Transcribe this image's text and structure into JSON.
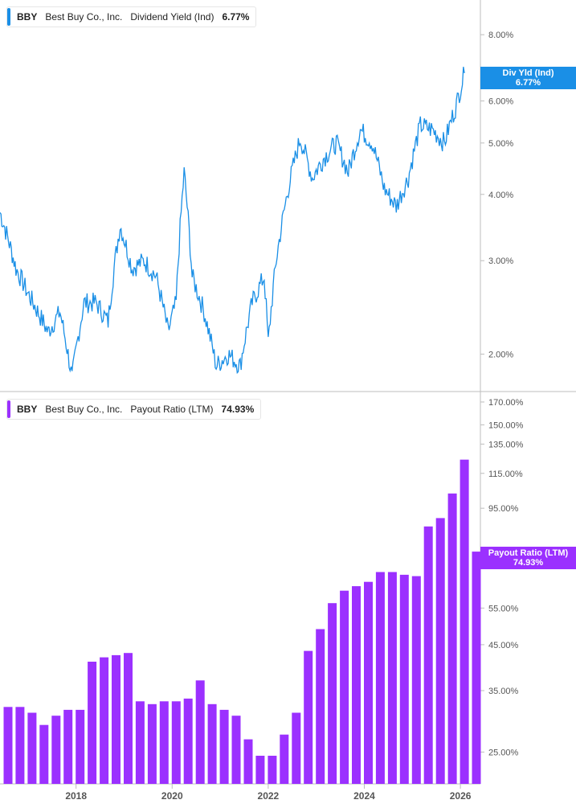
{
  "colors": {
    "yield": "#1a8fe6",
    "payout": "#9b30ff",
    "axis": "#bdbdbd",
    "grid": "#f2f2f2",
    "text": "#555555"
  },
  "legend_top": {
    "ticker": "BBY",
    "company": "Best Buy Co., Inc.",
    "metric": "Dividend Yield (Ind)",
    "value": "6.77%"
  },
  "legend_bottom": {
    "ticker": "BBY",
    "company": "Best Buy Co., Inc.",
    "metric": "Payout Ratio (LTM)",
    "value": "74.93%"
  },
  "tag_top": {
    "line1": "Div Yld (Ind)",
    "line2": "6.77%"
  },
  "tag_bottom": {
    "line1": "Payout Ratio (LTM)",
    "line2": "74.93%"
  },
  "chart_data": [
    {
      "type": "line",
      "series": [
        {
          "name": "Dividend Yield (Ind)",
          "points": [
            [
              "2016-06",
              3.7
            ],
            [
              "2016-10",
              2.9
            ],
            [
              "2017-01",
              2.6
            ],
            [
              "2017-06",
              2.2
            ],
            [
              "2017-09",
              2.4
            ],
            [
              "2017-12",
              1.8
            ],
            [
              "2018-03",
              2.5
            ],
            [
              "2018-06",
              2.5
            ],
            [
              "2018-09",
              2.3
            ],
            [
              "2018-12",
              3.5
            ],
            [
              "2019-03",
              2.9
            ],
            [
              "2019-06",
              3.0
            ],
            [
              "2019-09",
              2.8
            ],
            [
              "2019-12",
              2.2
            ],
            [
              "2020-02",
              2.5
            ],
            [
              "2020-04",
              4.4
            ],
            [
              "2020-06",
              2.8
            ],
            [
              "2020-09",
              2.4
            ],
            [
              "2020-12",
              1.9
            ],
            [
              "2021-03",
              2.0
            ],
            [
              "2021-06",
              1.9
            ],
            [
              "2021-09",
              2.5
            ],
            [
              "2021-12",
              2.8
            ],
            [
              "2022-01",
              2.1
            ],
            [
              "2022-03",
              3.0
            ],
            [
              "2022-06",
              4.1
            ],
            [
              "2022-09",
              5.1
            ],
            [
              "2022-12",
              4.3
            ],
            [
              "2023-03",
              4.7
            ],
            [
              "2023-06",
              5.0
            ],
            [
              "2023-09",
              4.4
            ],
            [
              "2023-12",
              5.3
            ],
            [
              "2024-03",
              5.0
            ],
            [
              "2024-06",
              4.1
            ],
            [
              "2024-09",
              3.8
            ],
            [
              "2024-12",
              4.3
            ],
            [
              "2025-03",
              5.4
            ],
            [
              "2025-06",
              5.3
            ],
            [
              "2025-09",
              5.0
            ],
            [
              "2025-12",
              5.9
            ],
            [
              "2026-02",
              6.77
            ]
          ]
        }
      ],
      "y_ticks": [
        "8.00%",
        "6.00%",
        "5.00%",
        "4.00%",
        "3.00%",
        "2.00%"
      ],
      "ylim": [
        1.7,
        9.3
      ],
      "yscale": "log"
    },
    {
      "type": "bar",
      "series": [
        {
          "name": "Payout Ratio (LTM)",
          "points": [
            [
              "2016-08",
              32
            ],
            [
              "2016-11",
              32
            ],
            [
              "2017-02",
              31
            ],
            [
              "2017-05",
              29
            ],
            [
              "2017-08",
              30.5
            ],
            [
              "2017-11",
              31.5
            ],
            [
              "2018-02",
              31.5
            ],
            [
              "2018-05",
              41
            ],
            [
              "2018-08",
              42
            ],
            [
              "2018-11",
              42.5
            ],
            [
              "2019-02",
              43
            ],
            [
              "2019-05",
              33
            ],
            [
              "2019-08",
              32.5
            ],
            [
              "2019-11",
              33
            ],
            [
              "2020-02",
              33
            ],
            [
              "2020-05",
              33.5
            ],
            [
              "2020-08",
              37
            ],
            [
              "2020-11",
              32.5
            ],
            [
              "2021-02",
              31.5
            ],
            [
              "2021-05",
              30.5
            ],
            [
              "2021-08",
              26.8
            ],
            [
              "2021-11",
              24.5
            ],
            [
              "2022-02",
              24.5
            ],
            [
              "2022-05",
              27.5
            ],
            [
              "2022-08",
              31
            ],
            [
              "2022-11",
              43.5
            ],
            [
              "2023-02",
              49
            ],
            [
              "2023-05",
              56.5
            ],
            [
              "2023-08",
              60.5
            ],
            [
              "2023-11",
              62
            ],
            [
              "2024-02",
              63.5
            ],
            [
              "2024-05",
              67
            ],
            [
              "2024-08",
              67
            ],
            [
              "2024-11",
              66
            ],
            [
              "2025-02",
              65.5
            ],
            [
              "2025-05",
              86
            ],
            [
              "2025-08",
              90
            ],
            [
              "2025-11",
              103
            ],
            [
              "2026-02",
              124
            ],
            [
              "2026-05",
              74.93
            ]
          ]
        }
      ],
      "y_ticks": [
        "170.00%",
        "150.00%",
        "135.00%",
        "115.00%",
        "95.00%",
        "55.00%",
        "45.00%",
        "35.00%",
        "25.00%"
      ],
      "ylim": [
        21,
        180
      ],
      "yscale": "log"
    }
  ],
  "x_ticks": [
    "2018",
    "2020",
    "2022",
    "2024",
    "2026"
  ],
  "xlim": [
    "2016-06",
    "2026-06"
  ]
}
